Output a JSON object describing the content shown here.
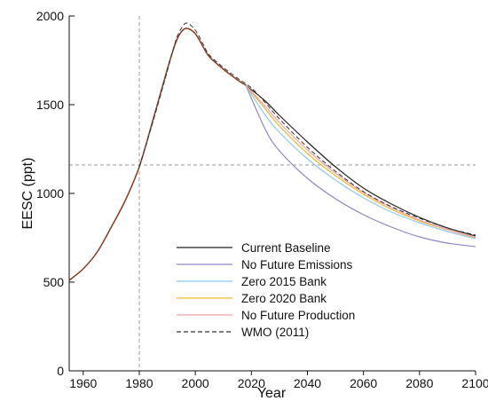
{
  "chart_data": {
    "type": "line",
    "title": "",
    "xlabel": "Year",
    "ylabel": "EESC (ppt)",
    "xlim": [
      1955,
      2100
    ],
    "ylim": [
      0,
      2000
    ],
    "x_ticks": [
      1960,
      1980,
      2000,
      2020,
      2040,
      2060,
      2080,
      2100
    ],
    "y_ticks": [
      0,
      500,
      1000,
      1500,
      2000
    ],
    "x_tick_labels": [
      "1960",
      "1980",
      "2000",
      "2020",
      "2040",
      "2060",
      "2080",
      "2100"
    ],
    "y_tick_labels": [
      "0",
      "500",
      "1000",
      "1500",
      "2000"
    ],
    "grid": false,
    "legend_position": "lower-center",
    "reference_lines": [
      {
        "orientation": "vertical",
        "value": 1980,
        "color": "#999999",
        "style": "dashed"
      },
      {
        "orientation": "horizontal",
        "value": 1160,
        "color": "#999999",
        "style": "dashed"
      }
    ],
    "historical": {
      "x": [
        1955,
        1960,
        1965,
        1970,
        1975,
        1980,
        1985,
        1990,
        1993,
        1995,
        1997,
        2000,
        2003,
        2005,
        2010,
        2015,
        2018
      ],
      "y": [
        510,
        575,
        670,
        810,
        960,
        1150,
        1420,
        1700,
        1850,
        1910,
        1930,
        1900,
        1820,
        1770,
        1700,
        1640,
        1610
      ]
    },
    "series": [
      {
        "name": "Current Baseline",
        "color": "#222222",
        "style": "solid",
        "x": [
          2018,
          2025,
          2030,
          2040,
          2050,
          2060,
          2070,
          2080,
          2090,
          2100
        ],
        "y": [
          1610,
          1520,
          1440,
          1290,
          1150,
          1030,
          940,
          865,
          805,
          760
        ]
      },
      {
        "name": "No Future Emissions",
        "color": "#8e86c6",
        "style": "solid",
        "x": [
          2018,
          2025,
          2030,
          2040,
          2050,
          2060,
          2070,
          2080,
          2090,
          2100
        ],
        "y": [
          1610,
          1360,
          1240,
          1085,
          970,
          880,
          810,
          755,
          720,
          700
        ]
      },
      {
        "name": "Zero 2015 Bank",
        "color": "#8ec8ea",
        "style": "solid",
        "x": [
          2018,
          2025,
          2030,
          2040,
          2050,
          2060,
          2070,
          2080,
          2090,
          2100
        ],
        "y": [
          1610,
          1440,
          1345,
          1195,
          1075,
          975,
          895,
          835,
          785,
          745
        ]
      },
      {
        "name": "Zero 2020 Bank",
        "color": "#f2b627",
        "style": "solid",
        "x": [
          2018,
          2025,
          2030,
          2040,
          2050,
          2060,
          2070,
          2080,
          2090,
          2100
        ],
        "y": [
          1610,
          1475,
          1380,
          1225,
          1100,
          995,
          910,
          845,
          795,
          750
        ]
      },
      {
        "name": "No Future Production",
        "color": "#f0a0a8",
        "style": "solid",
        "x": [
          2018,
          2025,
          2030,
          2040,
          2050,
          2060,
          2070,
          2080,
          2090,
          2100
        ],
        "y": [
          1610,
          1490,
          1400,
          1245,
          1115,
          1005,
          920,
          850,
          797,
          752
        ]
      },
      {
        "name": "WMO (2011)",
        "color": "#333333",
        "style": "dashed",
        "x": [
          1980,
          1985,
          1990,
          1993,
          1995,
          1997,
          2000,
          2003,
          2005,
          2010,
          2015,
          2020,
          2025,
          2030,
          2040,
          2050,
          2060,
          2070,
          2080,
          2090,
          2100
        ],
        "y": [
          1150,
          1410,
          1690,
          1860,
          1930,
          1960,
          1920,
          1835,
          1780,
          1710,
          1650,
          1595,
          1510,
          1420,
          1260,
          1125,
          1010,
          925,
          860,
          805,
          765
        ]
      }
    ]
  }
}
